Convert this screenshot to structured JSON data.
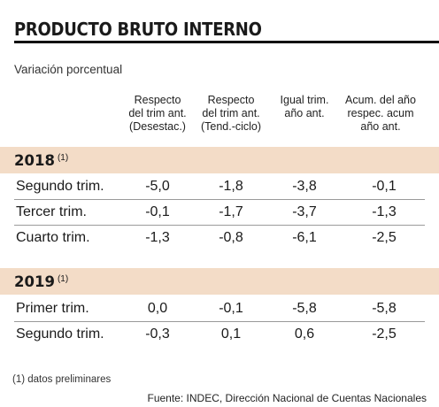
{
  "title": "PRODUCTO BRUTO INTERNO",
  "subtitle": "Variación porcentual",
  "columns": [
    {
      "line1": "Respecto",
      "line2": "del trim ant.",
      "line3": "(Desestac.)"
    },
    {
      "line1": "Respecto",
      "line2": "del trim ant.",
      "line3": "(Tend.-ciclo)"
    },
    {
      "line1": "Igual trim.",
      "line2": "año ant.",
      "line3": ""
    },
    {
      "line1": "Acum. del año",
      "line2": "respec. acum",
      "line3": "año ant."
    }
  ],
  "sections": [
    {
      "year": "2018",
      "note": "(1)",
      "rows": [
        {
          "label": "Segundo trim.",
          "values": [
            "-5,0",
            "-1,8",
            "-3,8",
            "-0,1"
          ]
        },
        {
          "label": "Tercer trim.",
          "values": [
            "-0,1",
            "-1,7",
            "-3,7",
            "-1,3"
          ]
        },
        {
          "label": "Cuarto trim.",
          "values": [
            "-1,3",
            "-0,8",
            "-6,1",
            "-2,5"
          ]
        }
      ]
    },
    {
      "year": "2019",
      "note": "(1)",
      "rows": [
        {
          "label": "Primer trim.",
          "values": [
            "0,0",
            "-0,1",
            "-5,8",
            "-5,8"
          ]
        },
        {
          "label": "Segundo trim.",
          "values": [
            "-0,3",
            "0,1",
            "0,6",
            "-2,5"
          ]
        }
      ]
    }
  ],
  "footnote": "(1) datos preliminares",
  "source": "Fuente: INDEC, Dirección Nacional de Cuentas Nacionales",
  "colors": {
    "band": "#f3dcc7",
    "rule": "#111111"
  }
}
